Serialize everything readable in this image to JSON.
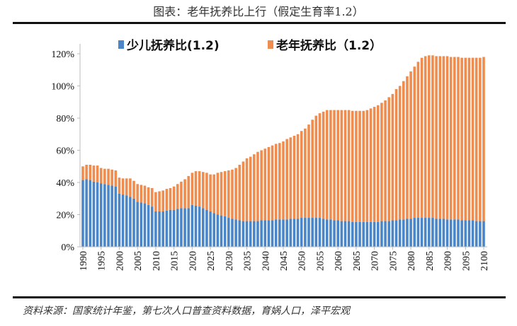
{
  "chart_data": {
    "type": "bar",
    "stacked": true,
    "title": "图表：老年抚养比上行（假定生育率1.2）",
    "source": "资料来源：国家统计年鉴，第七次人口普查资料数据，育娲人口，泽平宏观",
    "x_start": 1990,
    "x_end": 2100,
    "x_tick_labels": [
      "1990",
      "1995",
      "2000",
      "2005",
      "2010",
      "2015",
      "2020",
      "2025",
      "2030",
      "2035",
      "2040",
      "2045",
      "2050",
      "2055",
      "2060",
      "2065",
      "2070",
      "2075",
      "2080",
      "2085",
      "2090",
      "2095",
      "2100"
    ],
    "y_tick_labels": [
      "0%",
      "20%",
      "40%",
      "60%",
      "80%",
      "100%",
      "120%"
    ],
    "ylim": [
      0,
      120
    ],
    "yunit": "%",
    "grid": false,
    "legend_position": "top",
    "series": [
      {
        "name": "少儿抚养比(1.2)",
        "color": "#4a86c8",
        "values": [
          41.5,
          42,
          41.5,
          40.5,
          40,
          39.5,
          39,
          38.5,
          38,
          37.5,
          33,
          32.5,
          32,
          31,
          30,
          28,
          27.5,
          27,
          26,
          25,
          22,
          22,
          22,
          22.5,
          23,
          23,
          23.5,
          24,
          24,
          24,
          26,
          25.5,
          25,
          24,
          23,
          22,
          21,
          20,
          19.5,
          19,
          18,
          17.5,
          17,
          16.5,
          16,
          16,
          16,
          16,
          16,
          16.5,
          16.5,
          16.5,
          16.5,
          17,
          17,
          17,
          17,
          17.5,
          17.5,
          17.5,
          18,
          18,
          18,
          18,
          18,
          18,
          17.5,
          17,
          17,
          16.5,
          16.5,
          16,
          16,
          16,
          15.5,
          15.5,
          15.5,
          15.5,
          15.5,
          15.5,
          15.5,
          15.5,
          16,
          16,
          16,
          16.5,
          16.5,
          17,
          17,
          17.5,
          17.5,
          18,
          18,
          18,
          18,
          18,
          18,
          17.5,
          17.5,
          17.5,
          17,
          17,
          17,
          17,
          16.5,
          16.5,
          16.5,
          16.5,
          16,
          16,
          16
        ]
      },
      {
        "name": "老年抚养比（1.2）",
        "color": "#ee8d4f",
        "values": [
          8.5,
          9,
          9.5,
          10,
          10.5,
          9.5,
          9.5,
          10,
          10,
          10,
          10,
          10,
          10.5,
          11.5,
          11,
          11,
          11,
          11,
          11,
          11.5,
          12,
          12.5,
          13,
          13.5,
          13.5,
          14.5,
          15.5,
          16.5,
          18,
          20,
          20,
          21.5,
          22,
          22.5,
          23,
          23,
          24,
          26,
          27,
          28,
          29.5,
          30.5,
          32,
          34.5,
          37,
          39,
          40,
          41.5,
          43,
          43.5,
          44.5,
          45.5,
          46.5,
          47,
          47.5,
          48.5,
          50,
          50.5,
          51.5,
          52.5,
          54,
          55.5,
          58,
          61,
          63.5,
          65,
          66.5,
          68,
          68,
          68.5,
          68.5,
          69,
          69,
          69,
          69,
          69,
          69,
          69,
          69.5,
          70.5,
          71.5,
          72.5,
          73.5,
          75,
          77,
          78.5,
          81.5,
          83,
          86,
          88.5,
          91.5,
          94,
          97,
          99.5,
          100.5,
          101,
          101,
          101,
          101,
          101,
          101.5,
          101,
          101,
          101,
          101,
          101,
          101,
          101,
          101.5,
          101.5,
          102
        ]
      }
    ]
  }
}
